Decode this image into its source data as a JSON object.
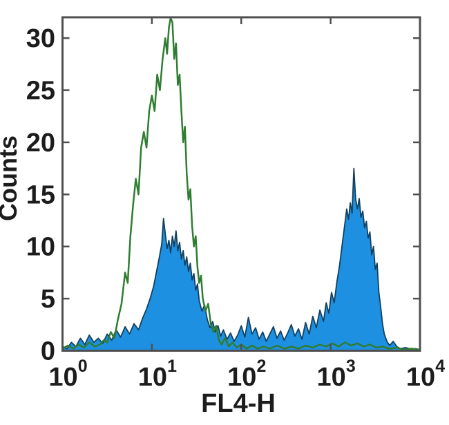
{
  "figure": {
    "background": "#ffffff",
    "axis_color": "#4f4f4f",
    "text_color": "#1c1c1c"
  },
  "chart_data": {
    "type": "area",
    "subtype": "overlaid-flow-cytometry-histograms",
    "title": "",
    "xlabel": "FL4-H",
    "ylabel": "Counts",
    "x_scale": "log10",
    "xlim": [
      1,
      10000
    ],
    "ylim": [
      0,
      32
    ],
    "grid": false,
    "legend": "none",
    "x_ticks": [
      {
        "base": "10",
        "exp": "0",
        "log_value": 0
      },
      {
        "base": "10",
        "exp": "1",
        "log_value": 1
      },
      {
        "base": "10",
        "exp": "2",
        "log_value": 2
      },
      {
        "base": "10",
        "exp": "3",
        "log_value": 3
      },
      {
        "base": "10",
        "exp": "4",
        "log_value": 4
      }
    ],
    "y_ticks": [
      {
        "label": "0",
        "value": 0
      },
      {
        "label": "5",
        "value": 5
      },
      {
        "label": "10",
        "value": 10
      },
      {
        "label": "15",
        "value": 15
      },
      {
        "label": "20",
        "value": 20
      },
      {
        "label": "25",
        "value": 25
      },
      {
        "label": "30",
        "value": 30
      }
    ],
    "series": [
      {
        "name": "blue-filled-histogram",
        "style": "filled",
        "fill": "#1e90e1",
        "stroke": "#11405f",
        "stroke_width": 1.8,
        "points": [
          [
            0.0,
            0.4
          ],
          [
            0.05,
            0.2
          ],
          [
            0.1,
            0.8
          ],
          [
            0.15,
            0.4
          ],
          [
            0.2,
            1.2
          ],
          [
            0.25,
            0.6
          ],
          [
            0.3,
            1.5
          ],
          [
            0.35,
            0.8
          ],
          [
            0.4,
            1.2
          ],
          [
            0.45,
            0.7
          ],
          [
            0.5,
            1.6
          ],
          [
            0.55,
            1.0
          ],
          [
            0.6,
            2.0
          ],
          [
            0.65,
            1.3
          ],
          [
            0.7,
            2.3
          ],
          [
            0.75,
            1.6
          ],
          [
            0.8,
            2.6
          ],
          [
            0.85,
            2.0
          ],
          [
            0.9,
            3.2
          ],
          [
            0.94,
            4.0
          ],
          [
            0.98,
            5.0
          ],
          [
            1.02,
            6.2
          ],
          [
            1.05,
            7.5
          ],
          [
            1.08,
            8.8
          ],
          [
            1.11,
            10.2
          ],
          [
            1.13,
            12.7
          ],
          [
            1.15,
            11.2
          ],
          [
            1.17,
            9.8
          ],
          [
            1.19,
            10.6
          ],
          [
            1.21,
            9.4
          ],
          [
            1.23,
            11.0
          ],
          [
            1.25,
            10.0
          ],
          [
            1.27,
            11.5
          ],
          [
            1.29,
            9.6
          ],
          [
            1.31,
            10.4
          ],
          [
            1.33,
            8.8
          ],
          [
            1.35,
            9.6
          ],
          [
            1.37,
            8.2
          ],
          [
            1.39,
            9.0
          ],
          [
            1.41,
            7.6
          ],
          [
            1.43,
            8.4
          ],
          [
            1.45,
            6.8
          ],
          [
            1.47,
            7.4
          ],
          [
            1.49,
            5.8
          ],
          [
            1.51,
            6.4
          ],
          [
            1.53,
            4.8
          ],
          [
            1.56,
            3.8
          ],
          [
            1.59,
            4.4
          ],
          [
            1.62,
            3.0
          ],
          [
            1.65,
            2.2
          ],
          [
            1.68,
            2.8
          ],
          [
            1.71,
            1.8
          ],
          [
            1.74,
            2.4
          ],
          [
            1.77,
            1.4
          ],
          [
            1.8,
            2.0
          ],
          [
            1.84,
            1.1
          ],
          [
            1.88,
            1.7
          ],
          [
            1.92,
            0.9
          ],
          [
            1.96,
            1.5
          ],
          [
            2.0,
            2.4
          ],
          [
            2.04,
            1.3
          ],
          [
            2.08,
            3.2
          ],
          [
            2.12,
            1.6
          ],
          [
            2.16,
            2.2
          ],
          [
            2.2,
            1.1
          ],
          [
            2.24,
            1.8
          ],
          [
            2.28,
            0.9
          ],
          [
            2.32,
            1.6
          ],
          [
            2.36,
            2.3
          ],
          [
            2.4,
            1.2
          ],
          [
            2.44,
            1.9
          ],
          [
            2.48,
            1.0
          ],
          [
            2.52,
            1.7
          ],
          [
            2.56,
            2.5
          ],
          [
            2.6,
            1.4
          ],
          [
            2.64,
            2.1
          ],
          [
            2.68,
            1.1
          ],
          [
            2.72,
            2.7
          ],
          [
            2.76,
            1.6
          ],
          [
            2.8,
            3.3
          ],
          [
            2.84,
            2.2
          ],
          [
            2.88,
            3.9
          ],
          [
            2.92,
            2.8
          ],
          [
            2.95,
            4.6
          ],
          [
            2.98,
            3.6
          ],
          [
            3.01,
            5.6
          ],
          [
            3.04,
            4.6
          ],
          [
            3.07,
            6.6
          ],
          [
            3.1,
            8.2
          ],
          [
            3.13,
            10.2
          ],
          [
            3.16,
            12.2
          ],
          [
            3.18,
            13.6
          ],
          [
            3.2,
            12.6
          ],
          [
            3.22,
            14.2
          ],
          [
            3.24,
            13.2
          ],
          [
            3.26,
            17.5
          ],
          [
            3.28,
            14.6
          ],
          [
            3.3,
            13.6
          ],
          [
            3.32,
            14.6
          ],
          [
            3.34,
            12.8
          ],
          [
            3.36,
            13.4
          ],
          [
            3.38,
            11.8
          ],
          [
            3.4,
            12.4
          ],
          [
            3.42,
            10.8
          ],
          [
            3.44,
            11.4
          ],
          [
            3.46,
            9.2
          ],
          [
            3.48,
            10.0
          ],
          [
            3.5,
            7.8
          ],
          [
            3.52,
            8.4
          ],
          [
            3.54,
            5.6
          ],
          [
            3.56,
            4.2
          ],
          [
            3.58,
            2.6
          ],
          [
            3.6,
            1.6
          ],
          [
            3.63,
            0.9
          ],
          [
            3.66,
            0.5
          ],
          [
            3.7,
            0.9
          ],
          [
            3.74,
            0.4
          ],
          [
            3.78,
            0.2
          ],
          [
            3.84,
            0.3
          ],
          [
            3.9,
            0.15
          ],
          [
            3.95,
            0.2
          ],
          [
            4.0,
            0.1
          ]
        ]
      },
      {
        "name": "green-open-histogram",
        "style": "open-line",
        "fill": "none",
        "stroke": "#2f7d31",
        "stroke_width": 2.5,
        "points": [
          [
            0.0,
            0.2
          ],
          [
            0.06,
            0.5
          ],
          [
            0.12,
            0.2
          ],
          [
            0.18,
            0.6
          ],
          [
            0.24,
            0.3
          ],
          [
            0.3,
            0.8
          ],
          [
            0.36,
            0.4
          ],
          [
            0.42,
            0.6
          ],
          [
            0.46,
            1.0
          ],
          [
            0.5,
            0.8
          ],
          [
            0.54,
            1.8
          ],
          [
            0.58,
            1.2
          ],
          [
            0.62,
            3.0
          ],
          [
            0.66,
            4.5
          ],
          [
            0.7,
            7.5
          ],
          [
            0.73,
            6.5
          ],
          [
            0.76,
            11.0
          ],
          [
            0.79,
            14.0
          ],
          [
            0.82,
            16.5
          ],
          [
            0.85,
            15.0
          ],
          [
            0.88,
            19.5
          ],
          [
            0.91,
            21.0
          ],
          [
            0.94,
            19.5
          ],
          [
            0.97,
            23.0
          ],
          [
            1.0,
            24.5
          ],
          [
            1.03,
            23.0
          ],
          [
            1.06,
            26.5
          ],
          [
            1.09,
            25.0
          ],
          [
            1.12,
            28.0
          ],
          [
            1.15,
            30.0
          ],
          [
            1.17,
            28.5
          ],
          [
            1.19,
            31.0
          ],
          [
            1.21,
            32.0
          ],
          [
            1.23,
            31.5
          ],
          [
            1.25,
            28.0
          ],
          [
            1.27,
            29.5
          ],
          [
            1.29,
            25.5
          ],
          [
            1.31,
            26.5
          ],
          [
            1.33,
            23.0
          ],
          [
            1.35,
            20.0
          ],
          [
            1.37,
            21.5
          ],
          [
            1.39,
            17.0
          ],
          [
            1.41,
            14.5
          ],
          [
            1.43,
            15.5
          ],
          [
            1.45,
            12.0
          ],
          [
            1.47,
            10.0
          ],
          [
            1.49,
            11.0
          ],
          [
            1.51,
            8.0
          ],
          [
            1.53,
            6.5
          ],
          [
            1.55,
            7.2
          ],
          [
            1.57,
            5.0
          ],
          [
            1.6,
            3.8
          ],
          [
            1.63,
            4.5
          ],
          [
            1.66,
            2.5
          ],
          [
            1.69,
            1.8
          ],
          [
            1.72,
            2.4
          ],
          [
            1.75,
            1.0
          ],
          [
            1.78,
            0.6
          ],
          [
            1.82,
            1.2
          ],
          [
            1.86,
            0.4
          ],
          [
            1.9,
            0.8
          ],
          [
            1.95,
            0.3
          ],
          [
            2.0,
            0.6
          ],
          [
            2.06,
            0.2
          ],
          [
            2.12,
            0.5
          ],
          [
            2.18,
            0.2
          ],
          [
            2.25,
            0.4
          ],
          [
            2.32,
            0.2
          ],
          [
            2.4,
            0.5
          ],
          [
            2.48,
            0.2
          ],
          [
            2.56,
            0.4
          ],
          [
            2.64,
            0.2
          ],
          [
            2.72,
            0.5
          ],
          [
            2.8,
            0.3
          ],
          [
            2.88,
            0.6
          ],
          [
            2.95,
            0.4
          ],
          [
            3.02,
            0.7
          ],
          [
            3.09,
            0.4
          ],
          [
            3.16,
            0.8
          ],
          [
            3.23,
            0.5
          ],
          [
            3.3,
            0.7
          ],
          [
            3.37,
            0.4
          ],
          [
            3.44,
            0.6
          ],
          [
            3.51,
            0.3
          ],
          [
            3.58,
            0.4
          ],
          [
            3.66,
            0.2
          ],
          [
            3.74,
            0.3
          ],
          [
            3.82,
            0.1
          ],
          [
            3.9,
            0.2
          ],
          [
            4.0,
            0.1
          ]
        ]
      }
    ]
  }
}
